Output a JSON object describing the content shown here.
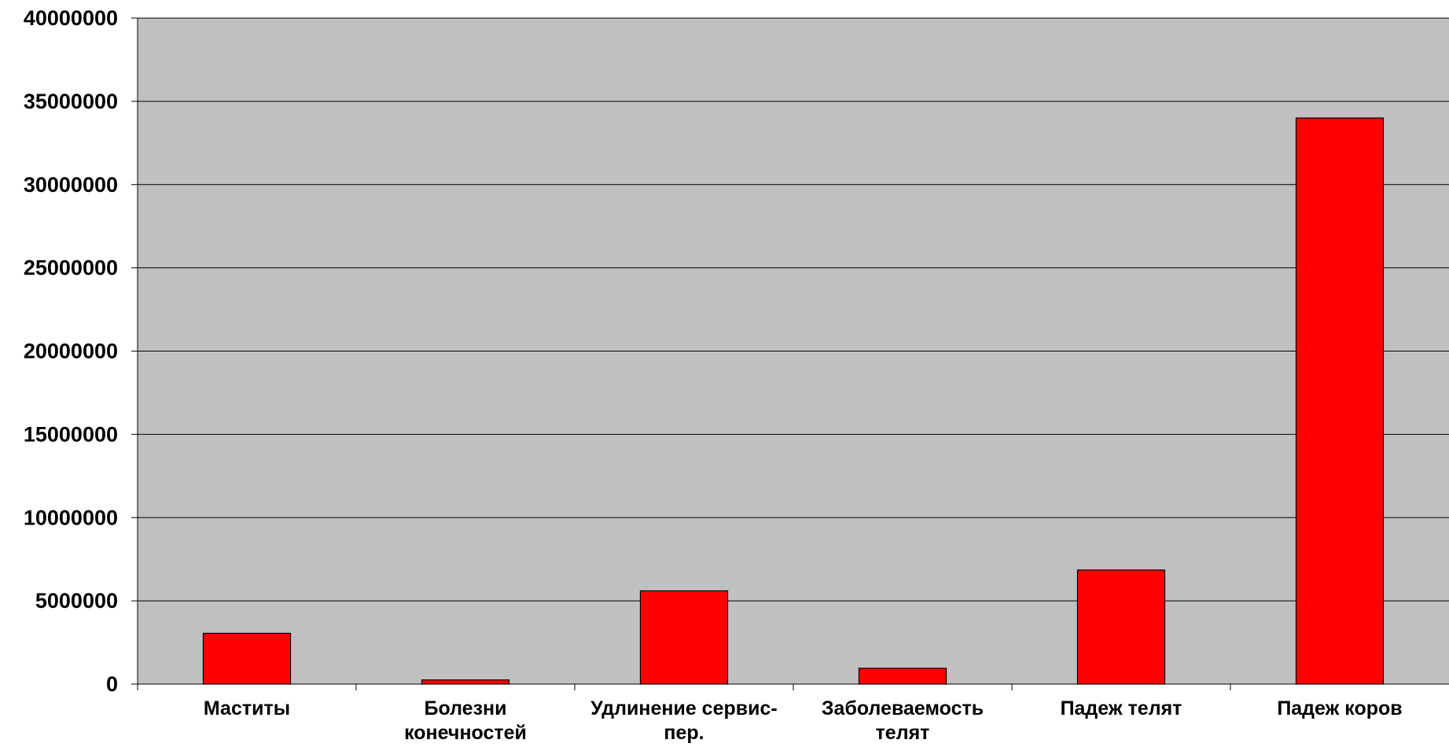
{
  "chart_data": {
    "type": "bar",
    "categories": [
      [
        "Маститы"
      ],
      [
        "Болезни",
        "конечностей"
      ],
      [
        "Удлинение сервис-",
        "пер."
      ],
      [
        "Заболеваемость",
        "телят"
      ],
      [
        "Падеж телят"
      ],
      [
        "Падеж коров"
      ]
    ],
    "values": [
      3050000,
      250000,
      5600000,
      950000,
      6850000,
      34000000
    ],
    "ylim": [
      0,
      40000000
    ],
    "yticks": [
      "0",
      "5000000",
      "10000000",
      "15000000",
      "20000000",
      "25000000",
      "30000000",
      "35000000",
      "40000000"
    ],
    "title": "",
    "xlabel": "",
    "ylabel": "",
    "grid": true,
    "legend": "none",
    "colors": {
      "bar": "#ff0000",
      "bar_stroke": "#000000",
      "plot_background": "#c0c0c0",
      "gridline": "#000000",
      "page_background": "#ffffff"
    }
  }
}
